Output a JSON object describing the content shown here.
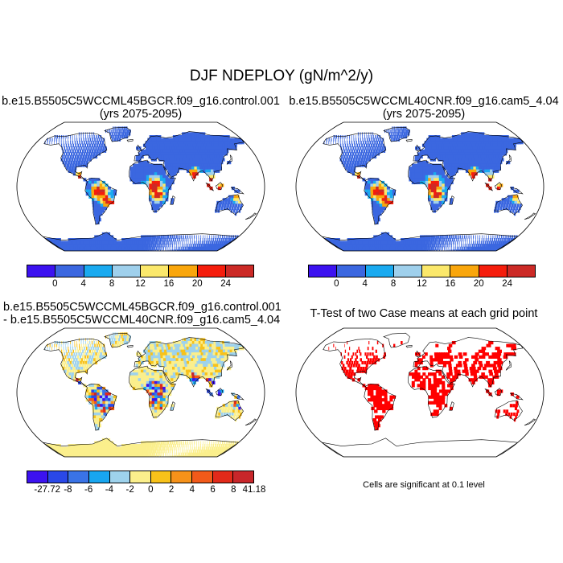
{
  "title": "DJF NDEPLOY (gN/m^2/y)",
  "panels": [
    {
      "title_line1": "b.e15.B5505C5WCCML45BGCR.f09_g16.control.001",
      "title_line2": "(yrs 2075-2095)"
    },
    {
      "title_line1": "b.e15.B5505C5WCCML40CNR.f09_g16.cam5_4.04",
      "title_line2": "(yrs 2075-2095)"
    },
    {
      "title_line1": "b.e15.B5505C5WCCML45BGCR.f09_g16.control.001",
      "title_line2": "- b.e15.B5505C5WCCML40CNR.f09_g16.cam5_4.04"
    },
    {
      "title_line1": "T-Test of two Case means at each grid point",
      "footnote": "Cells are significant at 0.1 level"
    }
  ],
  "colorbar_abs": {
    "colors": [
      "#3c12f0",
      "#3b67e0",
      "#1aaaf0",
      "#9fd0ec",
      "#fbe86b",
      "#f9a60c",
      "#f51d0c",
      "#cc2a26"
    ],
    "labels": [
      "0",
      "4",
      "8",
      "12",
      "16",
      "20",
      "24"
    ]
  },
  "colorbar_diff": {
    "colors": [
      "#3c12f0",
      "#2a48e8",
      "#3a73e6",
      "#18a6f0",
      "#9ed2ec",
      "#fbef8c",
      "#f8c21a",
      "#f6921a",
      "#f25a1a",
      "#e22a1a",
      "#c8262a"
    ],
    "labels": [
      "-27.72",
      "-8",
      "-6",
      "-4",
      "-2",
      "0",
      "2",
      "4",
      "6",
      "8",
      "41.18"
    ]
  }
}
